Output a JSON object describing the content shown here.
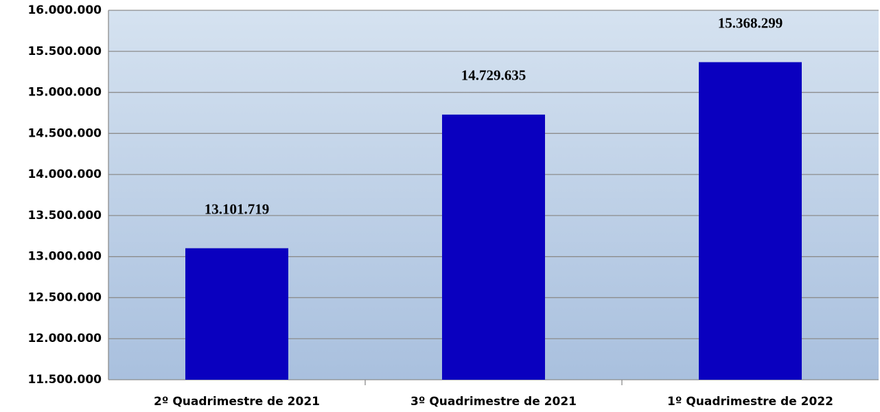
{
  "chart_data": {
    "type": "bar",
    "categories": [
      "2º Quadrimestre de 2021",
      "3º Quadrimestre de 2021",
      "1º Quadrimestre de 2022"
    ],
    "values": [
      13101719,
      14729635,
      15368299
    ],
    "value_labels": [
      "13.101.719",
      "14.729.635",
      "15.368.299"
    ],
    "color": "#0a00bf",
    "ylim": [
      11500000,
      16000000
    ],
    "yticks": [
      {
        "value": 11500000,
        "label": "11.500.000"
      },
      {
        "value": 12000000,
        "label": "12.000.000"
      },
      {
        "value": 12500000,
        "label": "12.500.000"
      },
      {
        "value": 13000000,
        "label": "13.000.000"
      },
      {
        "value": 13500000,
        "label": "13.500.000"
      },
      {
        "value": 14000000,
        "label": "14.000.000"
      },
      {
        "value": 14500000,
        "label": "14.500.000"
      },
      {
        "value": 15000000,
        "label": "15.000.000"
      },
      {
        "value": 15500000,
        "label": "15.500.000"
      },
      {
        "value": 16000000,
        "label": "16.000.000"
      }
    ],
    "grid": true
  }
}
